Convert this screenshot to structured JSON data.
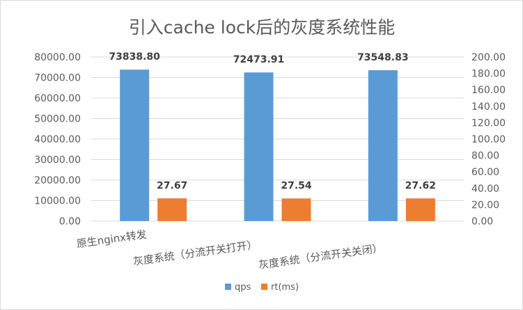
{
  "chart_data": {
    "type": "bar",
    "title": "引入cache lock后的灰度系统性能",
    "categories": [
      "原生nginx转发",
      "灰度系统（分流开关打开）",
      "灰度系统（分流开关关闭）"
    ],
    "series": [
      {
        "name": "qps",
        "axis": "left",
        "color": "#5b9bd5",
        "values": [
          73838.8,
          72473.91,
          73548.83
        ],
        "labels": [
          "73838.80",
          "72473.91",
          "73548.83"
        ]
      },
      {
        "name": "rt(ms)",
        "axis": "right",
        "color": "#ed7d31",
        "values": [
          27.67,
          27.54,
          27.62
        ],
        "labels": [
          "27.67",
          "27.54",
          "27.62"
        ]
      }
    ],
    "y_left": {
      "min": 0,
      "max": 80000,
      "step": 10000,
      "ticks": [
        "0.00",
        "10000.00",
        "20000.00",
        "30000.00",
        "40000.00",
        "50000.00",
        "60000.00",
        "70000.00",
        "80000.00"
      ]
    },
    "y_right": {
      "min": 0,
      "max": 200,
      "step": 20,
      "ticks": [
        "0.00",
        "20.00",
        "40.00",
        "60.00",
        "80.00",
        "100.00",
        "120.00",
        "140.00",
        "160.00",
        "180.00",
        "200.00"
      ]
    },
    "grid": true,
    "legend": "bottom"
  }
}
